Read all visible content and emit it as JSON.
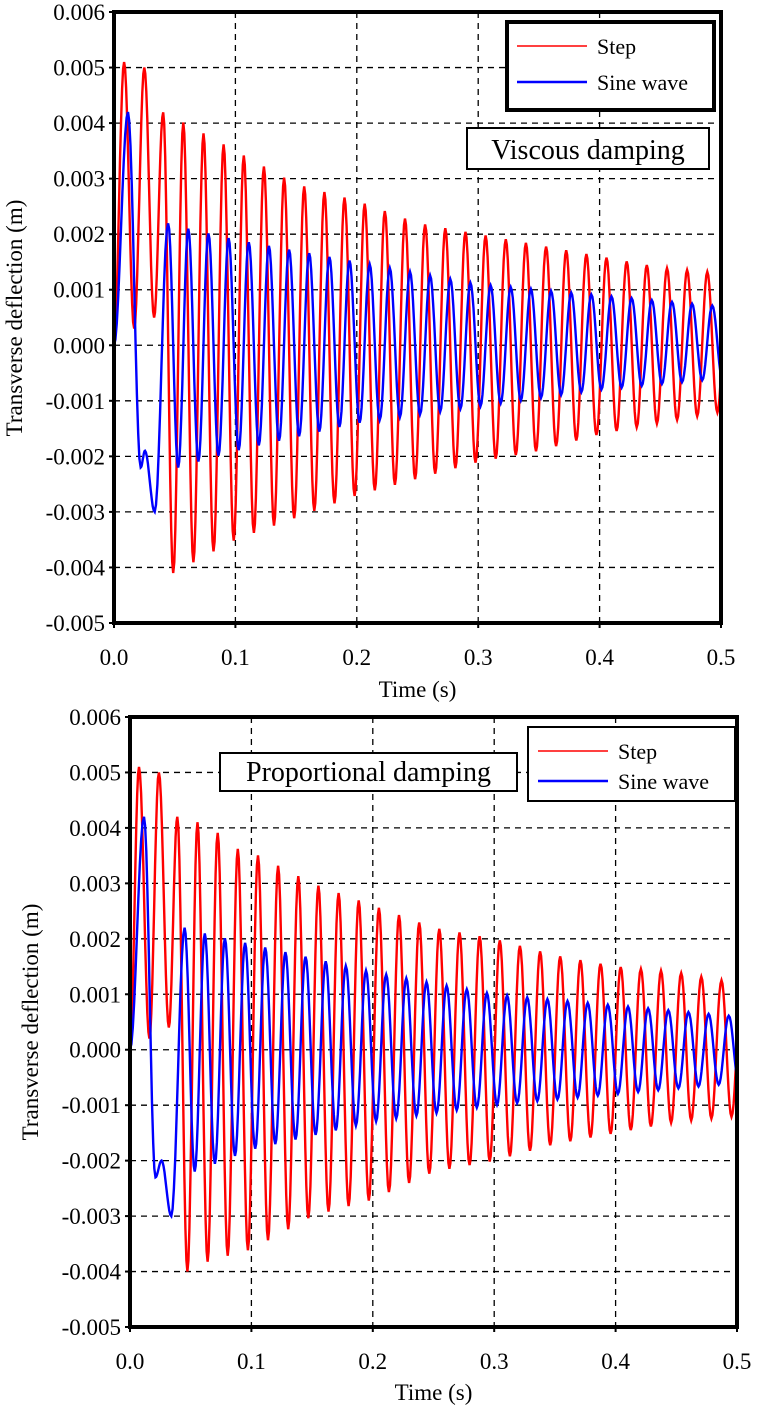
{
  "chart_data": [
    {
      "type": "line",
      "title": "",
      "annotation": "Viscous damping",
      "xlabel": "Time (s)",
      "ylabel": "Transverse deflection (m)",
      "xlim": [
        0,
        0.5
      ],
      "ylim": [
        -0.005,
        0.006
      ],
      "xticks": [
        "0.0",
        "0.1",
        "0.2",
        "0.3",
        "0.4",
        "0.5"
      ],
      "yticks": [
        "0.006",
        "0.005",
        "0.004",
        "0.003",
        "0.002",
        "0.001",
        "0.000",
        "-0.001",
        "-0.002",
        "-0.003",
        "-0.004",
        "-0.005"
      ],
      "grid": true,
      "legend_position": "top-right",
      "series": [
        {
          "name": "Step",
          "color": "#ff0000",
          "initial": [
            [
              0,
              0
            ],
            [
              0.0083,
              0.0051
            ],
            [
              0.0166,
              0.0003
            ],
            [
              0.025,
              0.005
            ],
            [
              0.033,
              0.0005
            ]
          ],
          "first_peak": 0.0405,
          "period": 0.0166,
          "upper": [
            [
              0.04,
              0.0042
            ],
            [
              0.058,
              0.004
            ],
            [
              0.075,
              0.0038
            ],
            [
              0.1,
              0.0035
            ],
            [
              0.15,
              0.0029
            ],
            [
              0.2,
              0.0026
            ],
            [
              0.25,
              0.0022
            ],
            [
              0.3,
              0.002
            ],
            [
              0.35,
              0.0018
            ],
            [
              0.4,
              0.0016
            ],
            [
              0.45,
              0.0014
            ],
            [
              0.5,
              0.0013
            ]
          ],
          "lower": [
            [
              0.05,
              -0.0041
            ],
            [
              0.066,
              -0.0039
            ],
            [
              0.083,
              -0.0037
            ],
            [
              0.1,
              -0.0035
            ],
            [
              0.15,
              -0.0031
            ],
            [
              0.2,
              -0.0027
            ],
            [
              0.25,
              -0.0024
            ],
            [
              0.3,
              -0.0021
            ],
            [
              0.35,
              -0.0019
            ],
            [
              0.4,
              -0.0016
            ],
            [
              0.45,
              -0.0014
            ],
            [
              0.5,
              -0.0012
            ]
          ]
        },
        {
          "name": "Sine wave",
          "color": "#0000ff",
          "initial": [
            [
              0,
              0
            ],
            [
              0.0115,
              0.0042
            ],
            [
              0.022,
              -0.0022
            ],
            [
              0.0255,
              -0.0019
            ],
            [
              0.0335,
              -0.003
            ]
          ],
          "first_peak": 0.0446,
          "period": 0.0166,
          "upper": [
            [
              0.044,
              0.0022
            ],
            [
              0.061,
              0.0021
            ],
            [
              0.1,
              0.0019
            ],
            [
              0.2,
              0.0015
            ],
            [
              0.3,
              0.0011
            ],
            [
              0.4,
              0.0009
            ],
            [
              0.5,
              0.0007
            ]
          ],
          "lower": [
            [
              0.053,
              -0.0022
            ],
            [
              0.1,
              -0.0019
            ],
            [
              0.2,
              -0.0014
            ],
            [
              0.3,
              -0.0011
            ],
            [
              0.4,
              -0.0008
            ],
            [
              0.5,
              -0.0006
            ]
          ]
        }
      ]
    },
    {
      "type": "line",
      "title": "",
      "annotation": "Proportional damping",
      "xlabel": "Time (s)",
      "ylabel": "Transverse deflection (m)",
      "xlim": [
        0,
        0.5
      ],
      "ylim": [
        -0.005,
        0.006
      ],
      "xticks": [
        "0.0",
        "0.1",
        "0.2",
        "0.3",
        "0.4",
        "0.5"
      ],
      "yticks": [
        "0.006",
        "0.005",
        "0.004",
        "0.003",
        "0.002",
        "0.001",
        "0.000",
        "-0.001",
        "-0.002",
        "-0.003",
        "-0.004",
        "-0.005"
      ],
      "grid": true,
      "legend_position": "top-right",
      "series": [
        {
          "name": "Step",
          "color": "#ff0000",
          "initial": [
            [
              0,
              0
            ],
            [
              0.0074,
              0.0051
            ],
            [
              0.016,
              0.0002
            ],
            [
              0.0238,
              0.005
            ],
            [
              0.032,
              0.0004
            ]
          ],
          "first_peak": 0.039,
          "period": 0.0166,
          "upper": [
            [
              0.039,
              0.0042
            ],
            [
              0.056,
              0.0041
            ],
            [
              0.073,
              0.0039
            ],
            [
              0.09,
              0.0036
            ],
            [
              0.106,
              0.0035
            ],
            [
              0.15,
              0.003
            ],
            [
              0.2,
              0.0026
            ],
            [
              0.25,
              0.0022
            ],
            [
              0.3,
              0.002
            ],
            [
              0.35,
              0.0017
            ],
            [
              0.4,
              0.0015
            ],
            [
              0.45,
              0.0014
            ],
            [
              0.5,
              0.0012
            ]
          ],
          "lower": [
            [
              0.048,
              -0.004
            ],
            [
              0.066,
              -0.0038
            ],
            [
              0.1,
              -0.0036
            ],
            [
              0.15,
              -0.003
            ],
            [
              0.2,
              -0.0027
            ],
            [
              0.25,
              -0.0022
            ],
            [
              0.3,
              -0.002
            ],
            [
              0.35,
              -0.0017
            ],
            [
              0.4,
              -0.0015
            ],
            [
              0.45,
              -0.0013
            ],
            [
              0.5,
              -0.0012
            ]
          ]
        },
        {
          "name": "Sine wave",
          "color": "#0000ff",
          "initial": [
            [
              0,
              0
            ],
            [
              0.0115,
              0.0042
            ],
            [
              0.021,
              -0.0023
            ],
            [
              0.026,
              -0.002
            ],
            [
              0.034,
              -0.003
            ]
          ],
          "first_peak": 0.045,
          "period": 0.0166,
          "upper": [
            [
              0.045,
              0.0022
            ],
            [
              0.061,
              0.0021
            ],
            [
              0.1,
              0.0019
            ],
            [
              0.2,
              0.0014
            ],
            [
              0.3,
              0.001
            ],
            [
              0.4,
              0.0008
            ],
            [
              0.5,
              0.0006
            ]
          ],
          "lower": [
            [
              0.053,
              -0.0022
            ],
            [
              0.1,
              -0.0018
            ],
            [
              0.2,
              -0.0013
            ],
            [
              0.3,
              -0.001
            ],
            [
              0.4,
              -0.0008
            ],
            [
              0.5,
              -0.0006
            ]
          ]
        }
      ]
    }
  ]
}
